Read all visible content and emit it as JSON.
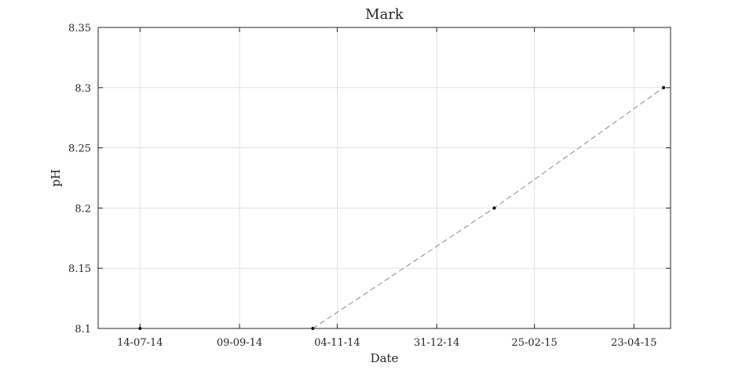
{
  "chart_data": {
    "type": "line",
    "title": "Mark",
    "xlabel": "Date",
    "ylabel": "pH",
    "x_ticks": [
      "14-07-14",
      "09-09-14",
      "04-11-14",
      "31-12-14",
      "25-02-15",
      "23-04-15"
    ],
    "y_ticks": [
      "8.1",
      "8.15",
      "8.2",
      "8.25",
      "8.3",
      "8.35"
    ],
    "xlim": [
      "2014-06-20",
      "2015-05-14"
    ],
    "ylim": [
      8.1,
      8.35
    ],
    "grid": true,
    "series": [
      {
        "x": [
          "2014-07-14",
          "2014-10-21",
          "2015-02-02",
          "2015-05-10"
        ],
        "y": [
          8.1,
          8.1,
          8.2,
          8.3
        ],
        "line_style": "dashed",
        "line_color": "#8c8c8c",
        "marker_color": "#000000"
      }
    ],
    "colors": {
      "axes": "#262626",
      "grid": "#e3e3e3"
    }
  }
}
